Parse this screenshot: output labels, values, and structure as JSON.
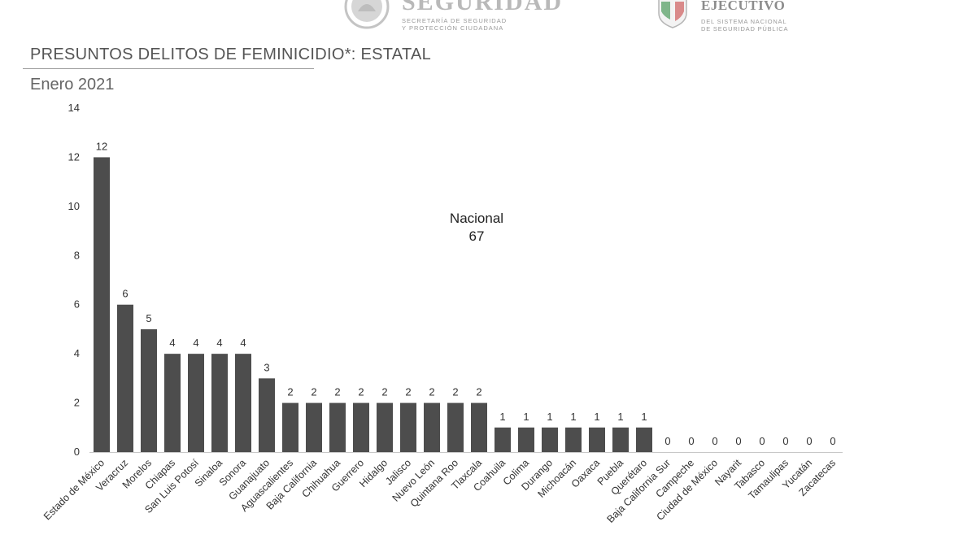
{
  "header": {
    "logo_left": {
      "title": "SEGURIDAD",
      "subtitle_line1": "SECRETARÍA DE SEGURIDAD",
      "subtitle_line2": "Y PROTECCIÓN CIUDADANA"
    },
    "logo_right": {
      "title": "EJECUTIVO",
      "subtitle_line1": "DEL SISTEMA NACIONAL",
      "subtitle_line2": "DE SEGURIDAD PÚBLICA"
    }
  },
  "chart_data": {
    "type": "bar",
    "title": "PRESUNTOS DELITOS DE FEMINICIDIO*: ESTATAL",
    "subtitle": "Enero 2021",
    "categories": [
      "Estado de México",
      "Veracruz",
      "Morelos",
      "Chiapas",
      "San Luis Potosí",
      "Sinaloa",
      "Sonora",
      "Guanajuato",
      "Aguascalientes",
      "Baja California",
      "Chihuahua",
      "Guerrero",
      "Hidalgo",
      "Jalisco",
      "Nuevo León",
      "Quintana Roo",
      "Tlaxcala",
      "Coahuila",
      "Colima",
      "Durango",
      "Michoacán",
      "Oaxaca",
      "Puebla",
      "Querétaro",
      "Baja California Sur",
      "Campeche",
      "Ciudad de México",
      "Nayarit",
      "Tabasco",
      "Tamaulipas",
      "Yucatán",
      "Zacatecas"
    ],
    "values": [
      12,
      6,
      5,
      4,
      4,
      4,
      4,
      3,
      2,
      2,
      2,
      2,
      2,
      2,
      2,
      2,
      2,
      1,
      1,
      1,
      1,
      1,
      1,
      1,
      0,
      0,
      0,
      0,
      0,
      0,
      0,
      0
    ],
    "ylim": [
      0,
      14
    ],
    "yticks": [
      0,
      2,
      4,
      6,
      8,
      10,
      12,
      14
    ],
    "xlabel": "",
    "ylabel": "",
    "grid": false,
    "bar_color": "#4d4d4d",
    "annotation": {
      "line1": "Nacional",
      "line2": "67"
    }
  }
}
